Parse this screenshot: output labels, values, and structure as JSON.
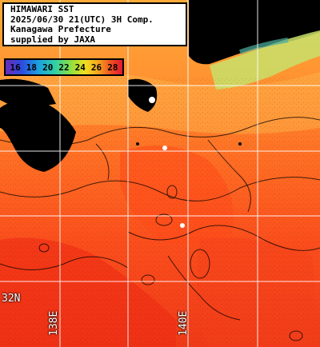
{
  "header": {
    "line1": "HIMAWARI SST",
    "line2": "2025/06/30 21(UTC) 3H Comp.",
    "line3": "Kanagawa Prefecture",
    "line4": "supplied by JAXA"
  },
  "legend": {
    "ticks": [
      "16",
      "18",
      "20",
      "22",
      "24",
      "26",
      "28"
    ]
  },
  "grid_labels": {
    "lat": "32N",
    "lon1": "138E",
    "lon2": "140E"
  },
  "colors": {
    "warm": "#ff5a1e",
    "hot": "#f03018",
    "mid": "#ff8a2a",
    "cool": "#ffb038",
    "land": "#000000",
    "grid": "#ffffff",
    "cloud": "#000000"
  }
}
